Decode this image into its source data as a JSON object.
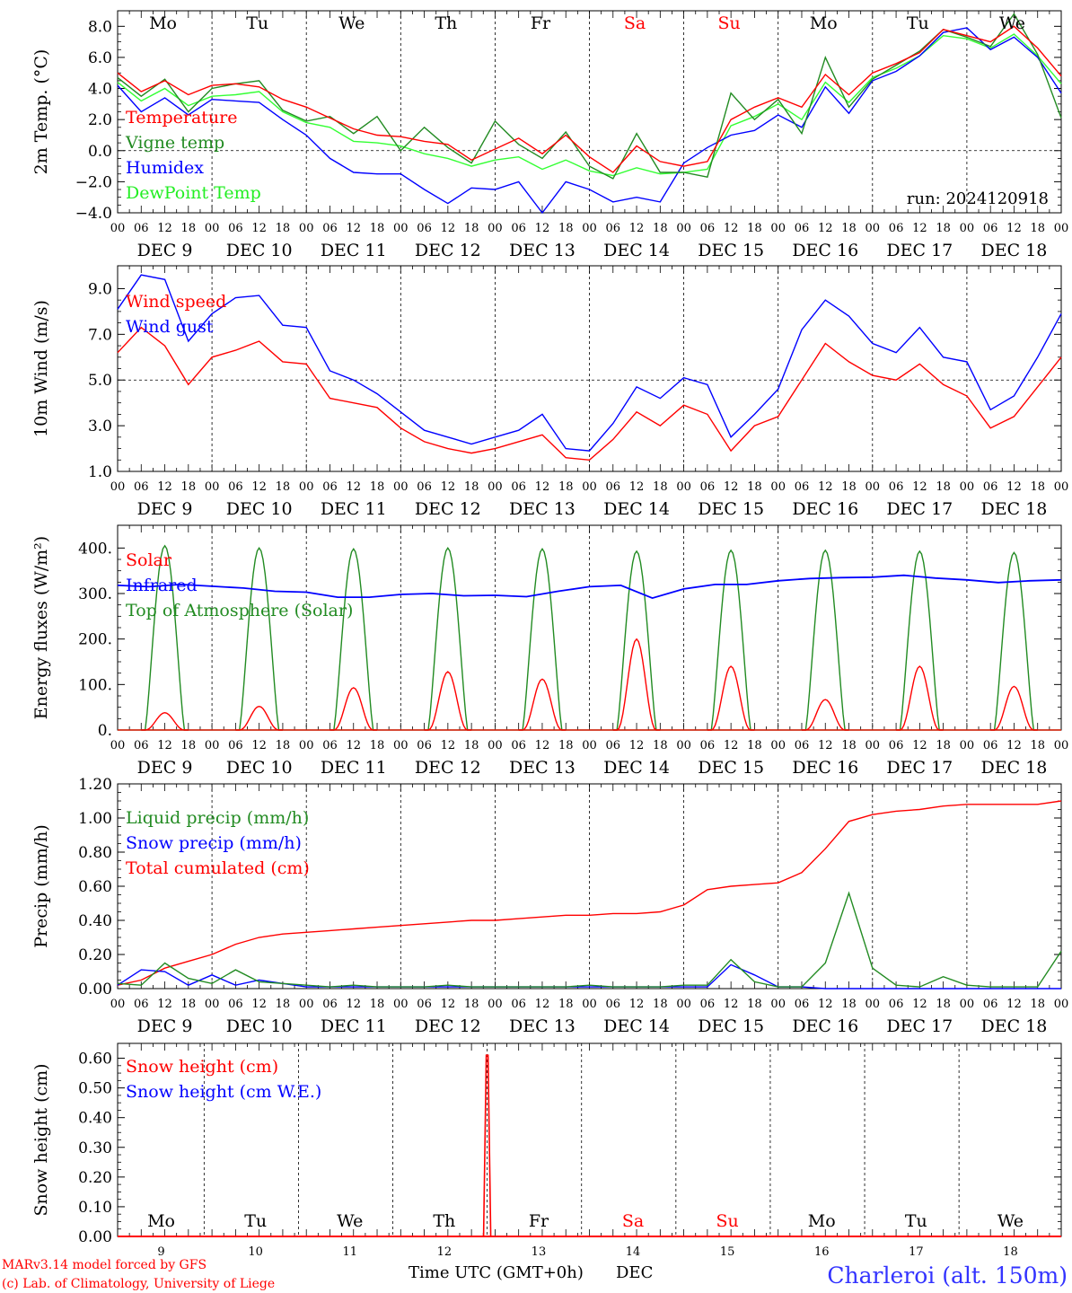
{
  "days": [
    "Mo",
    "Tu",
    "We",
    "Th",
    "Fr",
    "Sa",
    "Su",
    "Mo",
    "Tu",
    "We"
  ],
  "day_colors": [
    "#000000",
    "#000000",
    "#000000",
    "#000000",
    "#000000",
    "#ff0000",
    "#ff0000",
    "#000000",
    "#000000",
    "#000000"
  ],
  "hour_ticks": [
    "00",
    "06",
    "12",
    "18"
  ],
  "date_labels": [
    "DEC  9",
    "DEC 10",
    "DEC 11",
    "DEC 12",
    "DEC 13",
    "DEC 14",
    "DEC 15",
    "DEC 16",
    "DEC 17",
    "DEC 18"
  ],
  "bottom_day_numbers": [
    "9",
    "10",
    "11",
    "12",
    "13",
    "14",
    "15",
    "16",
    "17",
    "18"
  ],
  "xlabel": "Time UTC (GMT+0h)",
  "xlabel_suffix": "DEC",
  "footer_line1": "MARv3.14 model forced by GFS",
  "footer_line2": "(c) Lab. of Climatology, University of Liege",
  "station": "Charleroi (alt. 150m)",
  "run_label": "run: 2024120918",
  "chart_data": [
    {
      "type": "line",
      "ylabel": "2m Temp. (°C)",
      "ylim": [
        -4,
        9
      ],
      "yticks": [
        "−4.0",
        "−2.0",
        "0.0",
        "2.0",
        "4.0",
        "6.0",
        "8.0"
      ],
      "reference_line": 0,
      "x_hours": [
        0,
        6,
        12,
        18,
        24,
        30,
        36,
        42,
        48,
        54,
        60,
        66,
        72,
        78,
        84,
        90,
        96,
        102,
        108,
        114,
        120,
        126,
        132,
        138,
        144,
        150,
        156,
        162,
        168,
        174,
        180,
        186,
        192,
        198,
        204,
        210,
        216,
        222,
        228,
        234,
        240
      ],
      "series": [
        {
          "name": "Temperature",
          "color": "#ff0000",
          "values": [
            5.0,
            3.8,
            4.5,
            3.6,
            4.2,
            4.3,
            4.1,
            3.3,
            2.8,
            2.1,
            1.4,
            1.0,
            0.9,
            0.6,
            0.4,
            -0.6,
            0.1,
            0.8,
            -0.2,
            1.0,
            -0.4,
            -1.4,
            0.3,
            -0.7,
            -1.0,
            -0.7,
            2.0,
            2.8,
            3.4,
            2.8,
            4.9,
            3.6,
            5.0,
            5.6,
            6.3,
            7.8,
            7.4,
            7.0,
            8.0,
            6.6,
            4.8
          ]
        },
        {
          "name": "Vigne temp",
          "color": "#228b22",
          "values": [
            4.7,
            3.5,
            4.6,
            2.5,
            4.0,
            4.3,
            4.5,
            2.6,
            1.9,
            2.2,
            1.1,
            2.2,
            0.0,
            1.5,
            0.2,
            -0.8,
            1.9,
            0.4,
            -0.5,
            1.2,
            -1.0,
            -1.8,
            1.1,
            -1.4,
            -1.4,
            -1.7,
            3.7,
            2.0,
            3.3,
            1.1,
            6.0,
            2.8,
            4.6,
            5.5,
            6.4,
            7.8,
            7.3,
            6.7,
            8.8,
            6.2,
            2.1
          ]
        },
        {
          "name": "Humidex",
          "color": "#0000ff",
          "values": [
            4.2,
            2.5,
            3.4,
            2.3,
            3.3,
            3.2,
            3.1,
            2.0,
            1.0,
            -0.5,
            -1.4,
            -1.5,
            -1.5,
            -2.5,
            -3.4,
            -2.4,
            -2.5,
            -2.0,
            -4.0,
            -2.0,
            -2.5,
            -3.3,
            -3.0,
            -3.3,
            -0.8,
            0.2,
            1.0,
            1.3,
            2.3,
            1.5,
            4.1,
            2.4,
            4.5,
            5.1,
            6.1,
            7.6,
            7.9,
            6.5,
            7.3,
            6.0,
            3.7
          ]
        },
        {
          "name": "DewPoint Temp",
          "color": "#33ff33",
          "values": [
            4.4,
            3.2,
            4.0,
            2.9,
            3.5,
            3.6,
            3.8,
            2.5,
            1.8,
            1.5,
            0.6,
            0.5,
            0.3,
            -0.2,
            -0.5,
            -1.0,
            -0.6,
            -0.4,
            -1.2,
            -0.6,
            -1.3,
            -1.6,
            -1.1,
            -1.5,
            -1.4,
            -1.2,
            1.6,
            2.2,
            3.0,
            2.0,
            4.4,
            3.1,
            4.7,
            5.3,
            6.1,
            7.4,
            7.2,
            6.6,
            7.5,
            6.1,
            4.3
          ]
        }
      ]
    },
    {
      "type": "line",
      "ylabel": "10m Wind (m/s)",
      "ylim": [
        1,
        10
      ],
      "yticks": [
        "1.0",
        "3.0",
        "5.0",
        "7.0",
        "9.0"
      ],
      "reference_line": 5,
      "x_hours": [
        0,
        6,
        12,
        18,
        24,
        30,
        36,
        42,
        48,
        54,
        60,
        66,
        72,
        78,
        84,
        90,
        96,
        102,
        108,
        114,
        120,
        126,
        132,
        138,
        144,
        150,
        156,
        162,
        168,
        174,
        180,
        186,
        192,
        198,
        204,
        210,
        216,
        222,
        228,
        234,
        240
      ],
      "series": [
        {
          "name": "Wind speed",
          "color": "#ff0000",
          "values": [
            6.2,
            7.3,
            6.5,
            4.8,
            6.0,
            6.3,
            6.7,
            5.8,
            5.7,
            4.2,
            4.0,
            3.8,
            2.9,
            2.3,
            2.0,
            1.8,
            2.0,
            2.3,
            2.6,
            1.6,
            1.5,
            2.4,
            3.6,
            3.0,
            3.9,
            3.5,
            1.9,
            3.0,
            3.4,
            5.0,
            6.6,
            5.8,
            5.2,
            5.0,
            5.7,
            4.8,
            4.3,
            2.9,
            3.4,
            4.7,
            6.0
          ]
        },
        {
          "name": "Wind gust",
          "color": "#0000ff",
          "values": [
            8.1,
            9.6,
            9.4,
            6.7,
            7.9,
            8.6,
            8.7,
            7.4,
            7.3,
            5.4,
            5.0,
            4.4,
            3.6,
            2.8,
            2.5,
            2.2,
            2.5,
            2.8,
            3.5,
            2.0,
            1.9,
            3.1,
            4.7,
            4.2,
            5.1,
            4.8,
            2.5,
            3.5,
            4.6,
            7.2,
            8.5,
            7.8,
            6.6,
            6.2,
            7.3,
            6.0,
            5.8,
            3.7,
            4.3,
            6.0,
            7.9
          ]
        }
      ]
    },
    {
      "type": "line",
      "ylabel": "Energy fluxes (W/m²)",
      "ylim": [
        0,
        450
      ],
      "yticks": [
        "0.",
        "100.",
        "200.",
        "300.",
        "400."
      ],
      "days_count": 10,
      "toa_peak": [
        405,
        400,
        398,
        400,
        398,
        393,
        395,
        395,
        393,
        390
      ],
      "solar_peak": [
        38,
        52,
        93,
        128,
        112,
        200,
        140,
        67,
        140,
        96
      ],
      "series": [
        {
          "name": "Solar",
          "color": "#ff0000"
        },
        {
          "name": "Infrared",
          "color": "#0000ff",
          "values": [
            318,
            315,
            320,
            316,
            312,
            305,
            303,
            292,
            292,
            298,
            300,
            295,
            296,
            293,
            305,
            315,
            318,
            290,
            310,
            320,
            320,
            328,
            333,
            335,
            336,
            340,
            334,
            330,
            324,
            328,
            330
          ]
        },
        {
          "name": "Top of Atmosphere (Solar)",
          "color": "#228b22"
        }
      ]
    },
    {
      "type": "line",
      "ylabel": "Precip (mm/h)",
      "ylim": [
        0,
        1.2
      ],
      "yticks": [
        "0.00",
        "0.20",
        "0.40",
        "0.60",
        "0.80",
        "1.00",
        "1.20"
      ],
      "x_hours": [
        0,
        6,
        12,
        18,
        24,
        30,
        36,
        42,
        48,
        54,
        60,
        66,
        72,
        78,
        84,
        90,
        96,
        102,
        108,
        114,
        120,
        126,
        132,
        138,
        144,
        150,
        156,
        162,
        168,
        174,
        180,
        186,
        192,
        198,
        204,
        210,
        216,
        222,
        228,
        234,
        240
      ],
      "series": [
        {
          "name": "Liquid precip (mm/h)",
          "color": "#228b22",
          "values": [
            0.03,
            0.02,
            0.15,
            0.06,
            0.03,
            0.11,
            0.04,
            0.03,
            0.02,
            0.01,
            0.02,
            0.01,
            0.01,
            0.01,
            0.02,
            0.01,
            0.01,
            0.01,
            0.01,
            0.01,
            0.02,
            0.01,
            0.01,
            0.01,
            0.02,
            0.02,
            0.17,
            0.04,
            0.01,
            0.01,
            0.15,
            0.56,
            0.12,
            0.02,
            0.01,
            0.07,
            0.02,
            0.01,
            0.01,
            0.01,
            0.22
          ]
        },
        {
          "name": "Snow precip (mm/h)",
          "color": "#0000ff",
          "values": [
            0.02,
            0.11,
            0.1,
            0.02,
            0.08,
            0.02,
            0.05,
            0.03,
            0.01,
            0.01,
            0.01,
            0.01,
            0.01,
            0.01,
            0.01,
            0.01,
            0.01,
            0.01,
            0.01,
            0.01,
            0.01,
            0.01,
            0.01,
            0.01,
            0.01,
            0.01,
            0.14,
            0.08,
            0.01,
            0.01,
            0.0,
            0.0,
            0.0,
            0.0,
            0.0,
            0.0,
            0.0,
            0.0,
            0.0,
            0.0,
            0.0
          ]
        },
        {
          "name": "Total cumulated (cm)",
          "color": "#ff0000",
          "values": [
            0.02,
            0.05,
            0.12,
            0.16,
            0.2,
            0.26,
            0.3,
            0.32,
            0.33,
            0.34,
            0.35,
            0.36,
            0.37,
            0.38,
            0.39,
            0.4,
            0.4,
            0.41,
            0.42,
            0.43,
            0.43,
            0.44,
            0.44,
            0.45,
            0.49,
            0.58,
            0.6,
            0.61,
            0.62,
            0.68,
            0.82,
            0.98,
            1.02,
            1.04,
            1.05,
            1.07,
            1.08,
            1.08,
            1.08,
            1.08,
            1.1
          ]
        }
      ]
    },
    {
      "type": "line",
      "ylabel": "Snow height (cm)",
      "ylim": [
        0,
        0.65
      ],
      "yticks": [
        "0.00",
        "0.10",
        "0.20",
        "0.30",
        "0.40",
        "0.50",
        "0.60"
      ],
      "spike_hour": 94,
      "spike_value": 0.61,
      "series": [
        {
          "name": "Snow height (cm)",
          "color": "#ff0000"
        },
        {
          "name": "Snow height (cm W.E.)",
          "color": "#0000ff"
        }
      ]
    }
  ]
}
